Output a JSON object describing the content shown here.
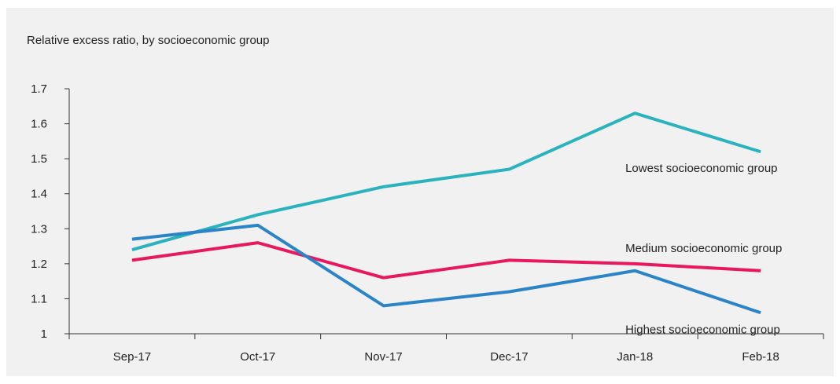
{
  "chart_data": {
    "type": "line",
    "title": "Relative excess ratio, by socioeconomic group",
    "xlabel": "",
    "ylabel": "",
    "categories": [
      "Sep-17",
      "Oct-17",
      "Nov-17",
      "Dec-17",
      "Jan-18",
      "Feb-18"
    ],
    "ylim": [
      1,
      1.7
    ],
    "yticks": [
      "1",
      "1.1",
      "1.2",
      "1.3",
      "1.4",
      "1.5",
      "1.6",
      "1.7"
    ],
    "grid": false,
    "legend": "inline labels at right end of each line",
    "series": [
      {
        "name": "Lowest socioeconomic group",
        "color": "#2bb3bd",
        "values": [
          1.24,
          1.34,
          1.42,
          1.47,
          1.63,
          1.52
        ]
      },
      {
        "name": "Medium socioeconomic group",
        "color": "#e8185e",
        "values": [
          1.21,
          1.26,
          1.16,
          1.21,
          1.2,
          1.18
        ]
      },
      {
        "name": "Highest socioeconomic group",
        "color": "#2a84c6",
        "values": [
          1.27,
          1.31,
          1.08,
          1.12,
          1.18,
          1.06
        ]
      }
    ]
  }
}
